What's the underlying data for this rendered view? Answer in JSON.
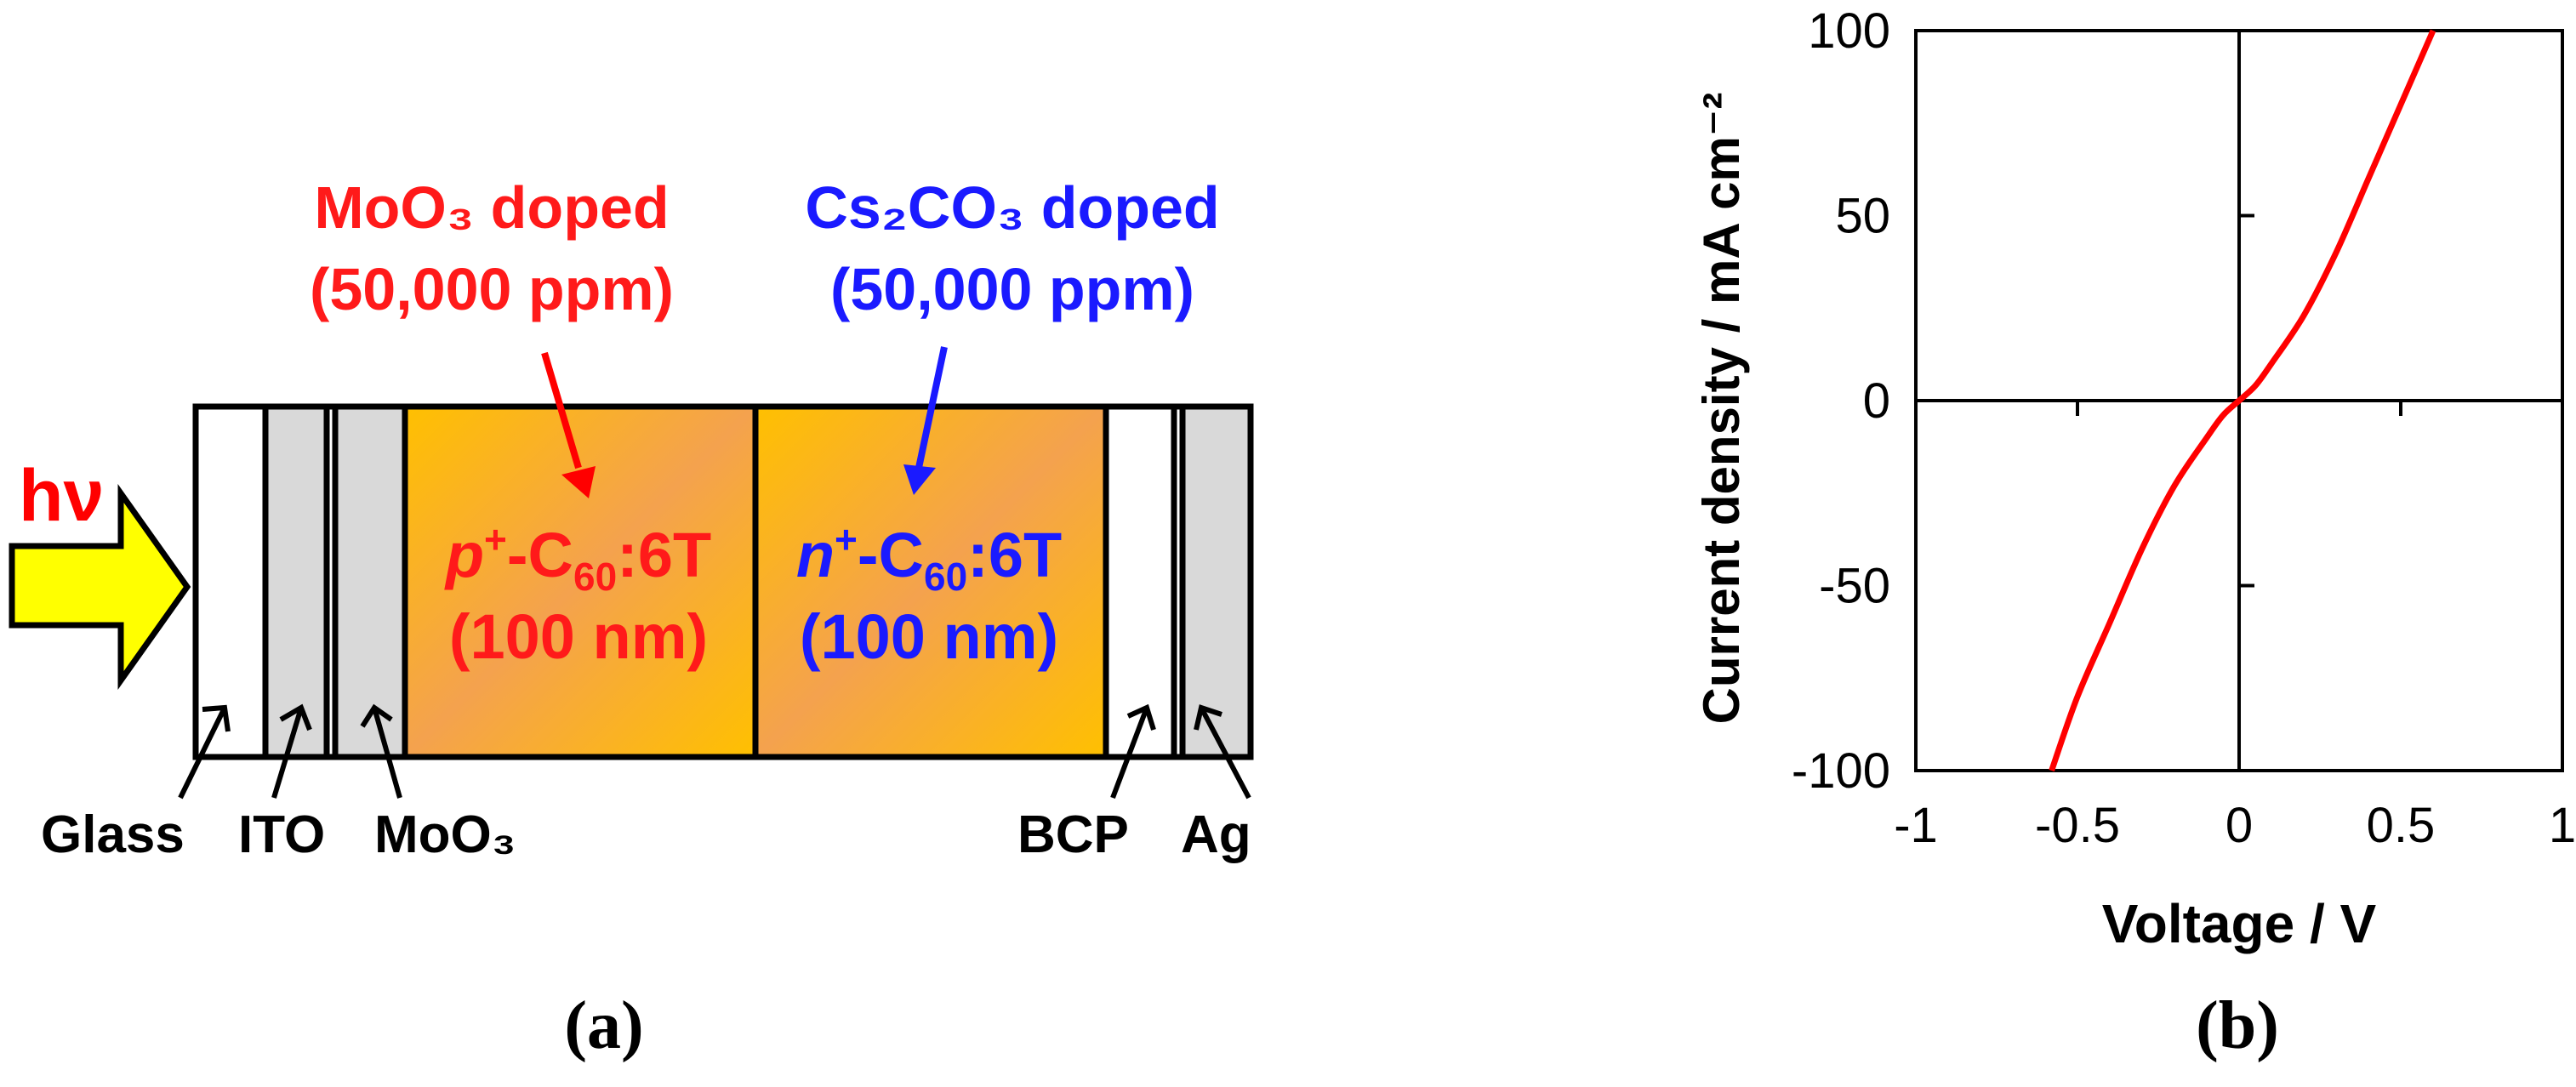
{
  "panel_a": {
    "label": "(a)",
    "light_label": "hν",
    "p_dopant": {
      "line1": "MoO₃ doped",
      "line2": "(50,000 ppm)"
    },
    "n_dopant": {
      "line1": "Cs₂CO₃ doped",
      "line2": "(50,000 ppm)"
    },
    "p_layer": {
      "prefix": "p",
      "sup": "+",
      "mid": "-C",
      "sub": "60",
      "suffix": ":6T",
      "thickness": "(100 nm)"
    },
    "n_layer": {
      "prefix": "n",
      "sup": "+",
      "mid": "-C",
      "sub": "60",
      "suffix": ":6T",
      "thickness": "(100 nm)"
    },
    "layer_labels": {
      "glass": "Glass",
      "ito": "ITO",
      "moo3": "MoO₃",
      "bcp": "BCP",
      "ag": "Ag"
    },
    "colors": {
      "p": "#ff1a1a",
      "n": "#1a1aff",
      "arrow": "#ffff00",
      "layer_gray": "#d9d9d9",
      "active_start": "#ffc000",
      "active_mid": "#f5a04a"
    }
  },
  "panel_b": {
    "label": "(b)",
    "chart_data": {
      "type": "line",
      "xlabel": "Voltage / V",
      "ylabel": "Current density / mA cm⁻²",
      "xlim": [
        -1,
        1
      ],
      "ylim": [
        -100,
        100
      ],
      "x_ticks": [
        "-1",
        "-0.5",
        "0",
        "0.5",
        "1"
      ],
      "y_ticks": [
        "100",
        "50",
        "0",
        "-50",
        "-100"
      ],
      "series": [
        {
          "color": "#ff0000",
          "x": [
            -0.58,
            -0.5,
            -0.4,
            -0.3,
            -0.2,
            -0.1,
            -0.05,
            0,
            0.05,
            0.1,
            0.2,
            0.3,
            0.4,
            0.5,
            0.6
          ],
          "y": [
            -100,
            -80,
            -60,
            -40,
            -23,
            -10,
            -4,
            0,
            4,
            10,
            23,
            40,
            60,
            80,
            100
          ]
        }
      ]
    }
  }
}
